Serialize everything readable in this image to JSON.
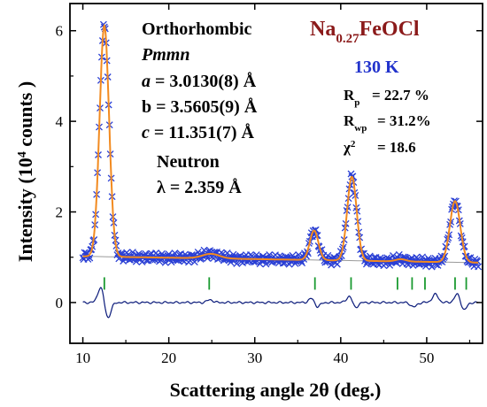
{
  "chart_data": {
    "type": "scatter",
    "xlabel_main": "Scattering angle 2",
    "xlabel_theta": "θ",
    "xlabel_unit": " (deg.)",
    "ylabel_main": "Intensity (10",
    "ylabel_sup": "4",
    "ylabel_end": " counts )",
    "xlim": [
      8.5,
      56.5
    ],
    "ylim": [
      -0.9,
      6.6
    ],
    "x_ticks": [
      10,
      20,
      30,
      40,
      50
    ],
    "y_ticks": [
      0,
      2,
      4,
      6
    ],
    "grid": false,
    "colors": {
      "observed": "#2a3fd4",
      "calculated": "#f28a1f",
      "background": "#9a9a9a",
      "bragg": "#1a9a30",
      "difference": "#0a1a7a",
      "title": "#8b1a1a",
      "temperature": "#2233cc"
    },
    "annotations": {
      "system": "Orthorhombic",
      "space_group": "Pmmn",
      "a_sym": "a",
      "a_val": " = 3.0130(8) Å",
      "b_sym": "b",
      "b_val": " = 3.5605(9) Å",
      "c_sym": "c",
      "c_val": " = 11.351(7) Å",
      "probe": "Neutron",
      "lambda": "λ = 2.359 Å",
      "formula_pre": "Na",
      "formula_sub": "0.27",
      "formula_post": "FeOCl",
      "temperature": "130 K",
      "rp_label": "R",
      "rp_sub": "p",
      "rp_val": "=   22.7 %",
      "rwp_label": "R",
      "rwp_sub": "wp",
      "rwp_val": "=  31.2%",
      "chi_label": "χ",
      "chi_sup": "2",
      "chi_val": "=   18.6"
    },
    "background_level": {
      "start": 1.02,
      "end": 0.88
    },
    "peaks": [
      {
        "center": 12.5,
        "height": 5.1,
        "width": 0.55
      },
      {
        "center": 24.9,
        "height": 0.1,
        "width": 1.0
      },
      {
        "center": 36.9,
        "height": 0.65,
        "width": 0.5
      },
      {
        "center": 41.3,
        "height": 1.85,
        "width": 0.55
      },
      {
        "center": 47.0,
        "height": 0.05,
        "width": 0.6
      },
      {
        "center": 53.3,
        "height": 1.35,
        "width": 0.6
      }
    ],
    "bragg_positions": [
      12.5,
      24.7,
      37.0,
      41.2,
      46.6,
      48.3,
      49.8,
      53.3,
      54.6
    ],
    "bragg_y": 0.42,
    "difference_baseline": 0.0,
    "difference_features": [
      {
        "center": 12.1,
        "amplitude": 0.35
      },
      {
        "center": 12.9,
        "amplitude": -0.35
      },
      {
        "center": 24.8,
        "amplitude": 0.06
      },
      {
        "center": 36.7,
        "amplitude": 0.12
      },
      {
        "center": 37.2,
        "amplitude": -0.12
      },
      {
        "center": 41.1,
        "amplitude": 0.18
      },
      {
        "center": 41.6,
        "amplitude": -0.15
      },
      {
        "center": 48.5,
        "amplitude": -0.1
      },
      {
        "center": 51.0,
        "amplitude": 0.18
      },
      {
        "center": 53.6,
        "amplitude": 0.2
      },
      {
        "center": 54.3,
        "amplitude": -0.18
      }
    ]
  }
}
